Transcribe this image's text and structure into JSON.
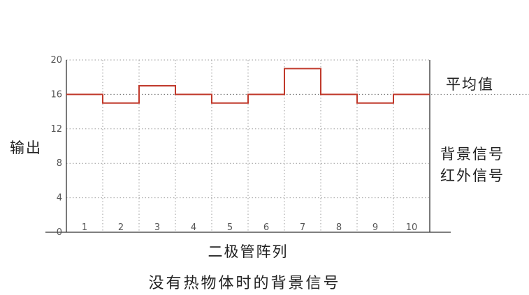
{
  "chart_data": {
    "type": "line",
    "step": true,
    "xlabel": "二极管阵列",
    "ylabel": "输出",
    "title": "没有热物体时的背景信号",
    "categories": [
      "1",
      "2",
      "3",
      "4",
      "5",
      "6",
      "7",
      "8",
      "9",
      "10"
    ],
    "series": [
      {
        "values": [
          16,
          15,
          17,
          16,
          15,
          16,
          19,
          16,
          15,
          16
        ]
      }
    ],
    "ylim": [
      0,
      20
    ],
    "yticks": [
      "0",
      "4",
      "8",
      "12",
      "16",
      "20"
    ],
    "reference_line": {
      "value": 16,
      "label": "平均值"
    },
    "annotations": [
      "背景信号",
      "红外信号"
    ],
    "grid": true,
    "colors": {
      "series": "#c0392b",
      "axis": "#333333",
      "grid": "#999999"
    }
  }
}
